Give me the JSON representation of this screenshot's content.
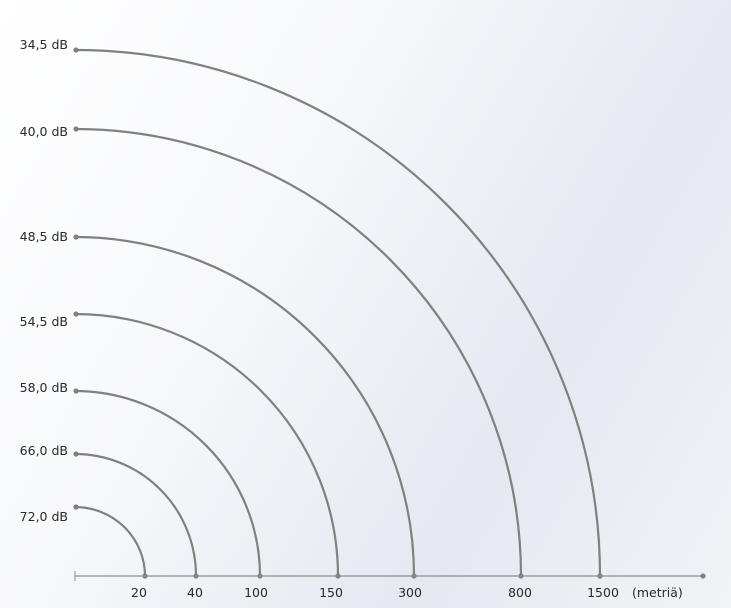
{
  "colors": {
    "curve": "#808080",
    "axis": "#8c8c8c",
    "text": "#2a2a2a"
  },
  "unit_label": "(metriä)",
  "rings": [
    {
      "db": "72,0 dB",
      "distance": "20"
    },
    {
      "db": "66,0 dB",
      "distance": "40"
    },
    {
      "db": "58,0 dB",
      "distance": "100"
    },
    {
      "db": "54,5 dB",
      "distance": "150"
    },
    {
      "db": "48,5 dB",
      "distance": "300"
    },
    {
      "db": "40,0 dB",
      "distance": "800"
    },
    {
      "db": "34,5 dB",
      "distance": "1500"
    }
  ]
}
